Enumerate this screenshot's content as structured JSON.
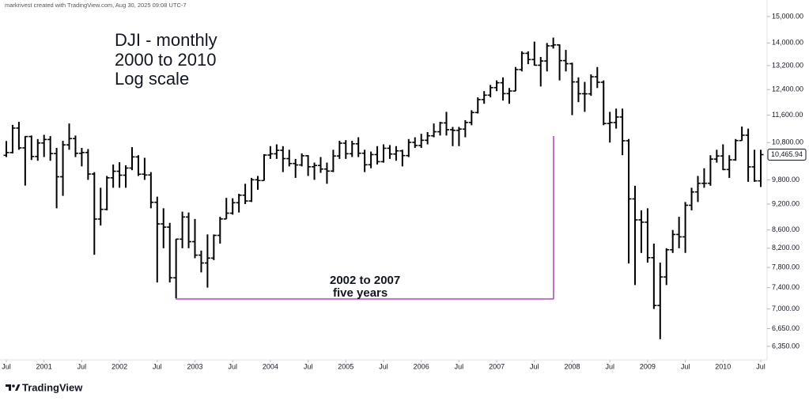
{
  "chart_data": {
    "type": "ohlc",
    "header": "markrivest created with TradingView.com, Aug 30, 2025 09:08 UTC-7",
    "title_lines": [
      "DJI - monthly",
      "2000 to 2010",
      "Log scale"
    ],
    "annotations": [
      "2002 to 2007",
      "five years"
    ],
    "brand": "TradingView",
    "color": "#000000",
    "log_scale": true,
    "grid": false,
    "x": [
      "2000-07",
      "2000-08",
      "2000-09",
      "2000-10",
      "2000-11",
      "2000-12",
      "2001-01",
      "2001-02",
      "2001-03",
      "2001-04",
      "2001-05",
      "2001-06",
      "2001-07",
      "2001-08",
      "2001-09",
      "2001-10",
      "2001-11",
      "2001-12",
      "2002-01",
      "2002-02",
      "2002-03",
      "2002-04",
      "2002-05",
      "2002-06",
      "2002-07",
      "2002-08",
      "2002-09",
      "2002-10",
      "2002-11",
      "2002-12",
      "2003-01",
      "2003-02",
      "2003-03",
      "2003-04",
      "2003-05",
      "2003-06",
      "2003-07",
      "2003-08",
      "2003-09",
      "2003-10",
      "2003-11",
      "2003-12",
      "2004-01",
      "2004-02",
      "2004-03",
      "2004-04",
      "2004-05",
      "2004-06",
      "2004-07",
      "2004-08",
      "2004-09",
      "2004-10",
      "2004-11",
      "2004-12",
      "2005-01",
      "2005-02",
      "2005-03",
      "2005-04",
      "2005-05",
      "2005-06",
      "2005-07",
      "2005-08",
      "2005-09",
      "2005-10",
      "2005-11",
      "2005-12",
      "2006-01",
      "2006-02",
      "2006-03",
      "2006-04",
      "2006-05",
      "2006-06",
      "2006-07",
      "2006-08",
      "2006-09",
      "2006-10",
      "2006-11",
      "2006-12",
      "2007-01",
      "2007-02",
      "2007-03",
      "2007-04",
      "2007-05",
      "2007-06",
      "2007-07",
      "2007-08",
      "2007-09",
      "2007-10",
      "2007-11",
      "2007-12",
      "2008-01",
      "2008-02",
      "2008-03",
      "2008-04",
      "2008-05",
      "2008-06",
      "2008-07",
      "2008-08",
      "2008-09",
      "2008-10",
      "2008-11",
      "2008-12",
      "2009-01",
      "2009-02",
      "2009-03",
      "2009-04",
      "2009-05",
      "2009-06",
      "2009-07",
      "2009-08",
      "2009-09",
      "2009-10",
      "2009-11",
      "2009-12",
      "2010-01",
      "2010-02",
      "2010-03",
      "2010-04",
      "2010-05",
      "2010-06",
      "2010-07"
    ],
    "open": [
      10448,
      10522,
      11215,
      10651,
      10971,
      10415,
      10788,
      10887,
      10495,
      9879,
      10735,
      10912,
      10502,
      10523,
      9950,
      8848,
      9075,
      9852,
      10022,
      9920,
      10106,
      10404,
      9946,
      9925,
      9243,
      8737,
      8664,
      7592,
      8397,
      8896,
      8342,
      8054,
      7891,
      7992,
      8480,
      8850,
      8985,
      9233,
      9416,
      9275,
      9801,
      9782,
      10454,
      10488,
      10584,
      10358,
      10226,
      10188,
      10435,
      10140,
      10174,
      10080,
      10027,
      10428,
      10783,
      10490,
      10766,
      10504,
      10193,
      10467,
      10275,
      10641,
      10482,
      10569,
      10440,
      10806,
      10718,
      10865,
      10993,
      11109,
      11367,
      11168,
      11150,
      11186,
      11381,
      11679,
      12081,
      12221,
      12463,
      12622,
      12269,
      12354,
      13063,
      13628,
      13409,
      13212,
      13358,
      13896,
      13930,
      13372,
      13265,
      12650,
      12266,
      12263,
      12820,
      12638,
      11350,
      11378,
      11544,
      10851,
      9325,
      8829,
      8776,
      8001,
      7063,
      7609,
      8168,
      8500,
      8447,
      9172,
      9496,
      9712,
      9713,
      10345,
      10428,
      10067,
      10325,
      10857,
      11009,
      10137,
      9774
    ],
    "high": [
      10843,
      11310,
      11400,
      10980,
      11000,
      10899,
      11020,
      10983,
      10650,
      10850,
      11350,
      11000,
      10650,
      10620,
      10000,
      9600,
      9900,
      10200,
      10260,
      10180,
      10670,
      10450,
      10380,
      10000,
      9380,
      9100,
      8760,
      8400,
      9020,
      9000,
      8850,
      8150,
      8500,
      8500,
      8900,
      9350,
      9340,
      9450,
      9700,
      9850,
      9900,
      10480,
      10700,
      10750,
      10700,
      10600,
      10350,
      10500,
      10450,
      10250,
      10400,
      10250,
      10600,
      10850,
      10870,
      10850,
      10950,
      10600,
      10550,
      10700,
      10750,
      10730,
      10700,
      10600,
      10900,
      10950,
      11050,
      11100,
      11350,
      11400,
      11700,
      11250,
      11250,
      11450,
      11750,
      12150,
      12350,
      12550,
      12700,
      12800,
      12450,
      13150,
      13700,
      13700,
      14050,
      13500,
      14000,
      14198,
      13950,
      13750,
      13300,
      12800,
      12650,
      12900,
      13150,
      12700,
      11700,
      11800,
      11800,
      10900,
      9650,
      9050,
      9100,
      8300,
      7900,
      8200,
      8600,
      8900,
      9250,
      9600,
      9900,
      10100,
      10450,
      10600,
      10750,
      10450,
      10900,
      11260,
      11200,
      10600,
      10600
    ],
    "low": [
      10400,
      10500,
      10600,
      9654,
      10320,
      10300,
      10400,
      10300,
      9100,
      9400,
      10600,
      10400,
      10150,
      9800,
      8062,
      8700,
      9050,
      9600,
      9600,
      9600,
      10050,
      9900,
      9800,
      9100,
      7500,
      8200,
      7500,
      7197,
      8200,
      8200,
      7990,
      7700,
      7400,
      7950,
      8300,
      8850,
      8950,
      9000,
      9200,
      9250,
      9550,
      9780,
      10350,
      10350,
      10000,
      10150,
      9850,
      10150,
      9900,
      9800,
      9980,
      9700,
      10000,
      10350,
      10350,
      10400,
      10400,
      10000,
      10100,
      10200,
      10250,
      10350,
      10300,
      10150,
      10400,
      10650,
      10650,
      10750,
      10950,
      11000,
      11000,
      10700,
      10700,
      10950,
      11300,
      11650,
      11950,
      12150,
      12350,
      12050,
      11950,
      12350,
      13000,
      13250,
      13200,
      12500,
      13000,
      13800,
      12700,
      13000,
      11600,
      12000,
      11700,
      12200,
      12450,
      11300,
      10800,
      11200,
      10450,
      7880,
      7450,
      8100,
      7900,
      7000,
      6470,
      7450,
      8100,
      8200,
      8100,
      9050,
      9250,
      9600,
      9650,
      10250,
      10050,
      9850,
      10300,
      10850,
      9750,
      9750,
      9620
    ],
    "close": [
      10522,
      11215,
      10651,
      10971,
      10415,
      10788,
      10887,
      10495,
      9879,
      10735,
      10912,
      10502,
      10523,
      9950,
      8848,
      9075,
      9852,
      10022,
      9920,
      10106,
      10404,
      9946,
      9925,
      9243,
      8737,
      8664,
      7592,
      8397,
      8896,
      8342,
      8054,
      7891,
      7992,
      8480,
      8850,
      8985,
      9233,
      9416,
      9275,
      9801,
      9782,
      10454,
      10488,
      10584,
      10358,
      10226,
      10188,
      10435,
      10140,
      10174,
      10080,
      10027,
      10428,
      10783,
      10490,
      10766,
      10504,
      10193,
      10467,
      10275,
      10641,
      10482,
      10569,
      10440,
      10806,
      10718,
      10865,
      10993,
      11109,
      11367,
      11168,
      11150,
      11186,
      11381,
      11679,
      12081,
      12221,
      12463,
      12622,
      12269,
      12354,
      13063,
      13628,
      13409,
      13212,
      13358,
      13896,
      13930,
      13372,
      13265,
      12650,
      12266,
      12263,
      12820,
      12638,
      11350,
      11378,
      11544,
      10851,
      9325,
      8829,
      8776,
      8001,
      7063,
      7609,
      8168,
      8500,
      8447,
      9172,
      9496,
      9712,
      9713,
      10345,
      10428,
      10067,
      10325,
      10857,
      11009,
      10137,
      9774,
      10465.94
    ],
    "last_close_label": "10,465.94",
    "ylim": [
      6130,
      15660
    ],
    "yticks": [
      {
        "value": 6350,
        "label": "6,350.00"
      },
      {
        "value": 6650,
        "label": "6,650.00"
      },
      {
        "value": 7000,
        "label": "7,000.00"
      },
      {
        "value": 7400,
        "label": "7,400.00"
      },
      {
        "value": 7800,
        "label": "7,800.00"
      },
      {
        "value": 8200,
        "label": "8,200.00"
      },
      {
        "value": 8600,
        "label": "8,600.00"
      },
      {
        "value": 9200,
        "label": "9,200.00"
      },
      {
        "value": 9800,
        "label": "9,800.00"
      },
      {
        "value": 10400,
        "label": "10,400.00"
      },
      {
        "value": 10800,
        "label": "10,800.00"
      },
      {
        "value": 11600,
        "label": "11,600.00"
      },
      {
        "value": 12400,
        "label": "12,400.00"
      },
      {
        "value": 13200,
        "label": "13,200.00"
      },
      {
        "value": 14000,
        "label": "14,000.00"
      },
      {
        "value": 15000,
        "label": "15,000.00"
      }
    ],
    "xticks": [
      {
        "value": "2000-07",
        "label": "Jul"
      },
      {
        "value": "2001-01",
        "label": "2001"
      },
      {
        "value": "2001-07",
        "label": "Jul"
      },
      {
        "value": "2002-01",
        "label": "2002"
      },
      {
        "value": "2002-07",
        "label": "Jul"
      },
      {
        "value": "2003-01",
        "label": "2003"
      },
      {
        "value": "2003-07",
        "label": "Jul"
      },
      {
        "value": "2004-01",
        "label": "2004"
      },
      {
        "value": "2004-07",
        "label": "Jul"
      },
      {
        "value": "2005-01",
        "label": "2005"
      },
      {
        "value": "2005-07",
        "label": "Jul"
      },
      {
        "value": "2006-01",
        "label": "2006"
      },
      {
        "value": "2006-07",
        "label": "Jul"
      },
      {
        "value": "2007-01",
        "label": "2007"
      },
      {
        "value": "2007-07",
        "label": "Jul"
      },
      {
        "value": "2008-01",
        "label": "2008"
      },
      {
        "value": "2008-07",
        "label": "Jul"
      },
      {
        "value": "2009-01",
        "label": "2009"
      },
      {
        "value": "2009-07",
        "label": "Jul"
      },
      {
        "value": "2010-01",
        "label": "2010"
      },
      {
        "value": "2010-07",
        "label": "Jul"
      }
    ]
  }
}
